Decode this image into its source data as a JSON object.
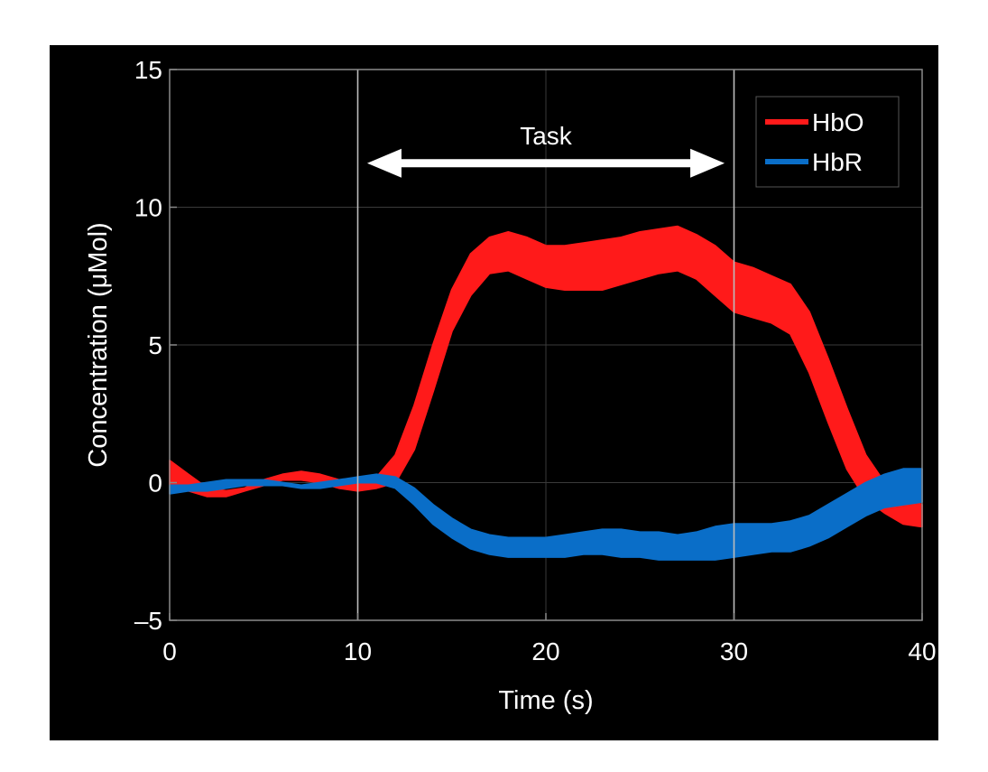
{
  "chart_data": {
    "type": "area",
    "xlabel": "Time (s)",
    "ylabel": "Concentration (μMol)",
    "xlim": [
      0,
      40
    ],
    "ylim": [
      -5,
      15
    ],
    "xticks": [
      0,
      10,
      20,
      30,
      40
    ],
    "yticks": [
      -5,
      0,
      5,
      10,
      15
    ],
    "x_tick_labels": [
      "0",
      "10",
      "20",
      "30",
      "40"
    ],
    "y_tick_labels": [
      "–5",
      "0",
      "5",
      "10",
      "15"
    ],
    "grid": true,
    "background": "#000000",
    "legend_position": "top-right",
    "series": [
      {
        "name": "HbO",
        "color": "#ff1a1a",
        "x": [
          0,
          1,
          2,
          3,
          4,
          5,
          6,
          7,
          8,
          9,
          10,
          11,
          12,
          13,
          14,
          15,
          16,
          17,
          18,
          19,
          20,
          21,
          22,
          23,
          24,
          25,
          26,
          27,
          28,
          29,
          30,
          31,
          32,
          33,
          34,
          35,
          36,
          37,
          38,
          39,
          40
        ],
        "upper": [
          0.8,
          0.3,
          -0.2,
          -0.3,
          -0.2,
          0.1,
          0.3,
          0.4,
          0.3,
          0.1,
          0.0,
          0.2,
          1.0,
          2.8,
          5.0,
          7.0,
          8.3,
          8.9,
          9.1,
          8.9,
          8.6,
          8.6,
          8.7,
          8.8,
          8.9,
          9.1,
          9.2,
          9.3,
          9.0,
          8.6,
          8.0,
          7.8,
          7.5,
          7.2,
          6.2,
          4.5,
          2.7,
          1.0,
          0.0,
          -0.5,
          -0.8
        ],
        "lower": [
          -0.2,
          -0.3,
          -0.5,
          -0.5,
          -0.3,
          -0.1,
          0.1,
          0.1,
          0.0,
          -0.2,
          -0.3,
          -0.2,
          0.0,
          1.2,
          3.3,
          5.5,
          6.8,
          7.6,
          7.7,
          7.4,
          7.1,
          7.0,
          7.0,
          7.0,
          7.2,
          7.4,
          7.6,
          7.7,
          7.4,
          6.8,
          6.2,
          6.0,
          5.8,
          5.4,
          4.0,
          2.2,
          0.5,
          -0.6,
          -1.1,
          -1.5,
          -1.6
        ]
      },
      {
        "name": "HbR",
        "color": "#0a6ec8",
        "x": [
          0,
          1,
          2,
          3,
          4,
          5,
          6,
          7,
          8,
          9,
          10,
          11,
          12,
          13,
          14,
          15,
          16,
          17,
          18,
          19,
          20,
          21,
          22,
          23,
          24,
          25,
          26,
          27,
          28,
          29,
          30,
          31,
          32,
          33,
          34,
          35,
          36,
          37,
          38,
          39,
          40
        ],
        "upper": [
          -0.1,
          -0.1,
          0.0,
          0.1,
          0.1,
          0.1,
          0.0,
          -0.1,
          0.0,
          0.1,
          0.2,
          0.3,
          0.2,
          -0.2,
          -0.8,
          -1.3,
          -1.7,
          -1.9,
          -2.0,
          -2.0,
          -2.0,
          -1.9,
          -1.8,
          -1.7,
          -1.7,
          -1.8,
          -1.8,
          -1.9,
          -1.8,
          -1.6,
          -1.5,
          -1.5,
          -1.5,
          -1.4,
          -1.2,
          -0.8,
          -0.4,
          0.0,
          0.3,
          0.5,
          0.5
        ],
        "lower": [
          -0.4,
          -0.3,
          -0.3,
          -0.2,
          -0.1,
          -0.1,
          -0.1,
          -0.2,
          -0.2,
          -0.1,
          0.0,
          0.0,
          -0.2,
          -0.8,
          -1.5,
          -2.0,
          -2.4,
          -2.6,
          -2.7,
          -2.7,
          -2.7,
          -2.7,
          -2.6,
          -2.6,
          -2.7,
          -2.7,
          -2.8,
          -2.8,
          -2.8,
          -2.8,
          -2.7,
          -2.6,
          -2.5,
          -2.5,
          -2.3,
          -2.0,
          -1.6,
          -1.2,
          -0.9,
          -0.8,
          -0.7
        ]
      }
    ],
    "vertical_lines": [
      10,
      30
    ],
    "annotations": [
      {
        "text": "Task",
        "x": 20,
        "y": 12.6,
        "arrow_from": 10.5,
        "arrow_to": 29.5,
        "arrow_y": 11.6
      }
    ]
  }
}
